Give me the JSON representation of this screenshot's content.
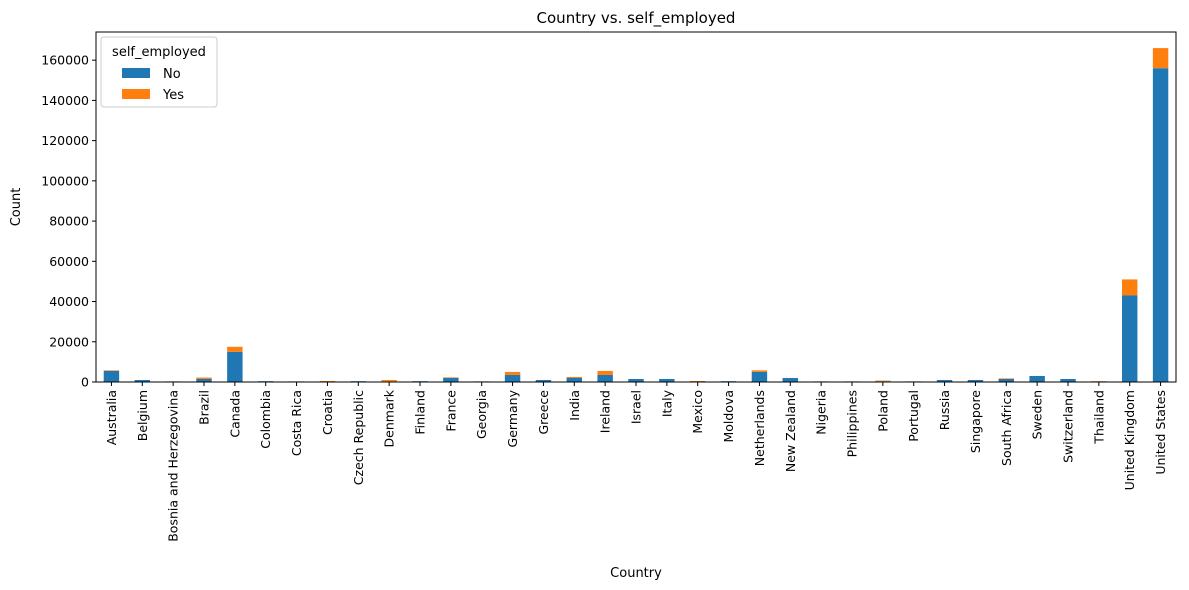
{
  "chart_data": {
    "type": "bar",
    "stacked": true,
    "title": "Country vs. self_employed",
    "xlabel": "Country",
    "ylabel": "Count",
    "ylim": [
      0,
      174000
    ],
    "yticks": [
      0,
      20000,
      40000,
      60000,
      80000,
      100000,
      120000,
      140000,
      160000
    ],
    "grid": false,
    "legend": {
      "title": "self_employed",
      "placement": "top-left"
    },
    "categories": [
      "Australia",
      "Belgium",
      "Bosnia and Herzegovina",
      "Brazil",
      "Canada",
      "Colombia",
      "Costa Rica",
      "Croatia",
      "Czech Republic",
      "Denmark",
      "Finland",
      "France",
      "Georgia",
      "Germany",
      "Greece",
      "India",
      "Ireland",
      "Israel",
      "Italy",
      "Mexico",
      "Moldova",
      "Netherlands",
      "New Zealand",
      "Nigeria",
      "Philippines",
      "Poland",
      "Portugal",
      "Russia",
      "Singapore",
      "South Africa",
      "Sweden",
      "Switzerland",
      "Thailand",
      "United Kingdom",
      "United States"
    ],
    "series": [
      {
        "name": "No",
        "color": "#1f77b4",
        "values": [
          5500,
          1000,
          300,
          1500,
          15000,
          400,
          300,
          200,
          400,
          300,
          400,
          2000,
          300,
          3500,
          1000,
          2000,
          3500,
          1500,
          1500,
          200,
          400,
          5000,
          2000,
          300,
          300,
          400,
          300,
          1000,
          1000,
          1500,
          3000,
          1500,
          200,
          43000,
          156000
        ]
      },
      {
        "name": "Yes",
        "color": "#ff7f0e",
        "values": [
          300,
          0,
          0,
          700,
          2500,
          0,
          0,
          300,
          0,
          700,
          0,
          300,
          0,
          1500,
          0,
          500,
          2000,
          0,
          0,
          300,
          0,
          800,
          0,
          0,
          0,
          300,
          0,
          0,
          0,
          300,
          0,
          0,
          200,
          8000,
          10000
        ]
      }
    ]
  }
}
